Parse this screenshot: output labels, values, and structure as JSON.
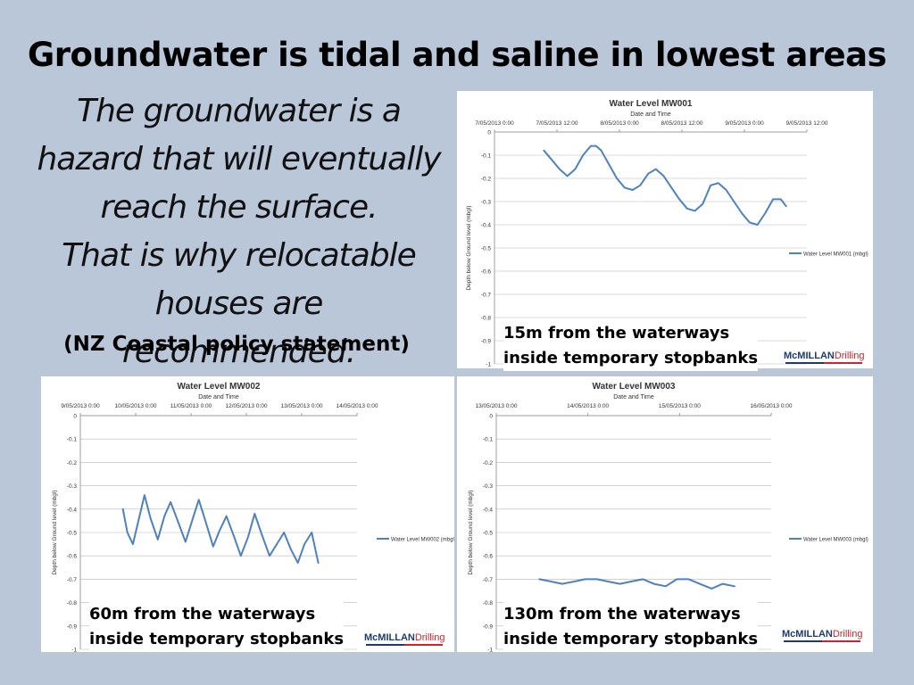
{
  "slide": {
    "title": "Groundwater is tidal and saline in lowest areas",
    "quote_lines": [
      "The groundwater is a",
      "hazard that will eventually",
      "reach the surface.",
      "That is why relocatable",
      "houses are recommended."
    ],
    "source": "(NZ Coastal policy statement)"
  },
  "logo": {
    "mc": "McMILLAN",
    "drilling": "Drilling"
  },
  "colors": {
    "background": "#b9c7d9",
    "series": "#4f81bd",
    "logo_blue": "#1d3b6b",
    "logo_red": "#d2232a"
  },
  "chart_data": [
    {
      "type": "line",
      "title": "Water Level MW001",
      "xlabel": "Date and Time",
      "ylabel": "Depth below Ground level (mbgl)",
      "xtick_labels": [
        "7/05/2013 0:00",
        "7/05/2013 12:00",
        "8/05/2013 0:00",
        "8/05/2013 12:00",
        "9/05/2013 0:00",
        "9/05/2013 12:00"
      ],
      "xlim": [
        0,
        60
      ],
      "ylim": [
        -1,
        0
      ],
      "ytick_labels": [
        "0",
        "-0.1",
        "-0.2",
        "-0.3",
        "-0.4",
        "-0.5",
        "-0.6",
        "-0.7",
        "-0.8",
        "-0.9",
        "-1"
      ],
      "legend": "right",
      "grid": true,
      "caption": [
        "15m from the waterways",
        "inside temporary stopbanks"
      ],
      "series": [
        {
          "name": "Water Level MW001 (mbgl)",
          "x": [
            9.5,
            11,
            12.5,
            14,
            15.5,
            17,
            18.5,
            19.5,
            20.5,
            22,
            23.5,
            25,
            26.5,
            28,
            29.5,
            31,
            32.5,
            34,
            35.5,
            37,
            38.5,
            40,
            41.5,
            43,
            44.5,
            46,
            47.5,
            49,
            50.5,
            52,
            53.5,
            55,
            56
          ],
          "y": [
            -0.08,
            -0.12,
            -0.16,
            -0.19,
            -0.16,
            -0.1,
            -0.06,
            -0.06,
            -0.08,
            -0.14,
            -0.2,
            -0.24,
            -0.25,
            -0.23,
            -0.18,
            -0.16,
            -0.19,
            -0.24,
            -0.29,
            -0.33,
            -0.34,
            -0.31,
            -0.23,
            -0.22,
            -0.25,
            -0.3,
            -0.35,
            -0.39,
            -0.4,
            -0.35,
            -0.29,
            -0.29,
            -0.32
          ]
        }
      ]
    },
    {
      "type": "line",
      "title": "Water Level MW002",
      "xlabel": "Date and Time",
      "ylabel": "Depth below Ground level (mbgl)",
      "xtick_labels": [
        "9/05/2013 0:00",
        "10/05/2013 0:00",
        "11/05/2013 0:00",
        "12/05/2013 0:00",
        "13/05/2013 0:00",
        "14/05/2013 0:00"
      ],
      "xlim": [
        0,
        5
      ],
      "ylim": [
        -1,
        0
      ],
      "ytick_labels": [
        "0",
        "-0.1",
        "-0.2",
        "-0.3",
        "-0.4",
        "-0.5",
        "-0.6",
        "-0.7",
        "-0.8",
        "-0.9",
        "-1"
      ],
      "legend": "right",
      "grid": true,
      "caption": [
        "60m from the waterways",
        "inside temporary stopbanks"
      ],
      "series": [
        {
          "name": "Water Level MW002 (mbgl)",
          "x": [
            0.77,
            0.85,
            0.95,
            1.05,
            1.16,
            1.27,
            1.4,
            1.52,
            1.63,
            1.76,
            1.9,
            2.02,
            2.14,
            2.26,
            2.4,
            2.52,
            2.64,
            2.78,
            2.9,
            3.03,
            3.15,
            3.28,
            3.42,
            3.55,
            3.68,
            3.8,
            3.93,
            4.05,
            4.18,
            4.3
          ],
          "y": [
            -0.4,
            -0.5,
            -0.55,
            -0.45,
            -0.34,
            -0.44,
            -0.53,
            -0.43,
            -0.37,
            -0.45,
            -0.54,
            -0.45,
            -0.36,
            -0.45,
            -0.56,
            -0.49,
            -0.43,
            -0.52,
            -0.6,
            -0.52,
            -0.42,
            -0.51,
            -0.6,
            -0.55,
            -0.5,
            -0.57,
            -0.63,
            -0.55,
            -0.5,
            -0.63
          ]
        }
      ]
    },
    {
      "type": "line",
      "title": "Water Level MW003",
      "xlabel": "Date and Time",
      "ylabel": "Depth below Ground level (mbgl)",
      "xtick_labels": [
        "13/05/2013 0:00",
        "14/05/2013 0:00",
        "15/05/2013 0:00",
        "16/05/2013 0:00"
      ],
      "xlim": [
        0,
        3
      ],
      "ylim": [
        -1,
        0
      ],
      "ytick_labels": [
        "0",
        "-0.1",
        "-0.2",
        "-0.3",
        "-0.4",
        "-0.5",
        "-0.6",
        "-0.7",
        "-0.8",
        "-0.9",
        "-1"
      ],
      "legend": "right",
      "grid": true,
      "caption": [
        "130m from the waterways",
        "inside temporary stopbanks"
      ],
      "series": [
        {
          "name": "Water Level MW003 (mbgl)",
          "x": [
            0.47,
            0.6,
            0.72,
            0.85,
            0.97,
            1.1,
            1.22,
            1.35,
            1.47,
            1.6,
            1.72,
            1.85,
            1.97,
            2.1,
            2.22,
            2.35,
            2.47,
            2.6
          ],
          "y": [
            -0.7,
            -0.71,
            -0.72,
            -0.71,
            -0.7,
            -0.7,
            -0.71,
            -0.72,
            -0.71,
            -0.7,
            -0.72,
            -0.73,
            -0.7,
            -0.7,
            -0.72,
            -0.74,
            -0.72,
            -0.73
          ]
        }
      ]
    }
  ]
}
